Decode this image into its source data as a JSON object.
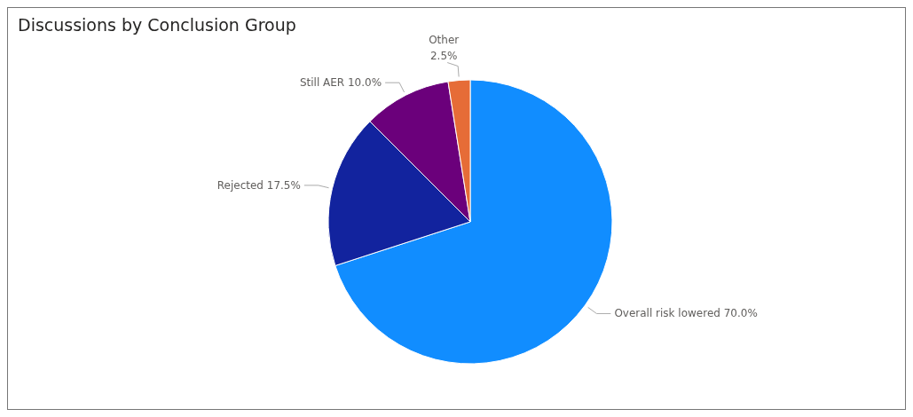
{
  "chart_data": {
    "type": "pie",
    "title": "Discussions by Conclusion Group",
    "categories": [
      "Overall risk lowered",
      "Rejected",
      "Still AER",
      "Other"
    ],
    "values": [
      70,
      17.5,
      10,
      2.5
    ],
    "colors": [
      "#118dff",
      "#12239e",
      "#6b007b",
      "#e66c37"
    ],
    "value_labels": [
      "70.0%",
      "17.5%",
      "10.0%",
      "2.5%"
    ]
  }
}
